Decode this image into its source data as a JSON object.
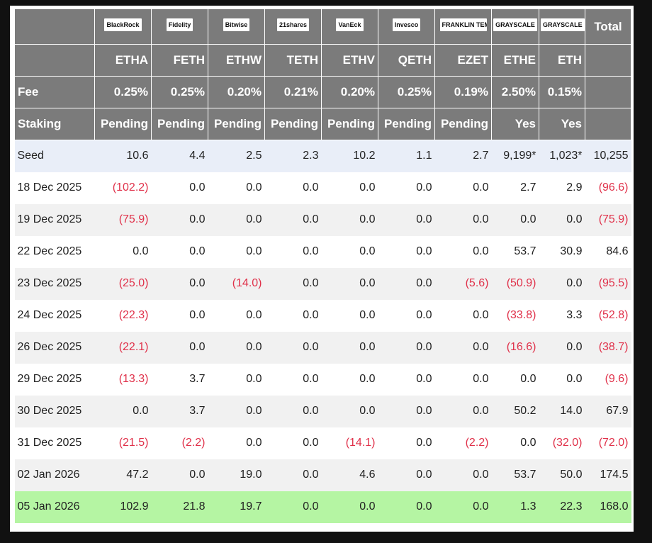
{
  "header": {
    "logos": [
      "BlackRock",
      "Fidelity",
      "Bitwise",
      "21shares",
      "VanEck",
      "Invesco",
      "FRANKLIN TEMPLETON",
      "GRAYSCALE",
      "GRAYSCALE"
    ],
    "total": "Total",
    "tickers": [
      "ETHA",
      "FETH",
      "ETHW",
      "TETH",
      "ETHV",
      "QETH",
      "EZET",
      "ETHE",
      "ETH"
    ]
  },
  "fee": {
    "label": "Fee",
    "values": [
      "0.25%",
      "0.25%",
      "0.20%",
      "0.21%",
      "0.20%",
      "0.25%",
      "0.19%",
      "2.50%",
      "0.15%"
    ]
  },
  "staking": {
    "label": "Staking",
    "values": [
      "Pending",
      "Pending",
      "Pending",
      "Pending",
      "Pending",
      "Pending",
      "Pending",
      "Yes",
      "Yes"
    ]
  },
  "rows": [
    {
      "label": "Seed",
      "cells": [
        "10.6",
        "4.4",
        "2.5",
        "2.3",
        "10.2",
        "1.1",
        "2.7",
        "9,199*",
        "1,023*",
        "10,255"
      ]
    },
    {
      "label": "18 Dec 2025",
      "cells": [
        "(102.2)",
        "0.0",
        "0.0",
        "0.0",
        "0.0",
        "0.0",
        "0.0",
        "2.7",
        "2.9",
        "(96.6)"
      ]
    },
    {
      "label": "19 Dec 2025",
      "cells": [
        "(75.9)",
        "0.0",
        "0.0",
        "0.0",
        "0.0",
        "0.0",
        "0.0",
        "0.0",
        "0.0",
        "(75.9)"
      ]
    },
    {
      "label": "22 Dec 2025",
      "cells": [
        "0.0",
        "0.0",
        "0.0",
        "0.0",
        "0.0",
        "0.0",
        "0.0",
        "53.7",
        "30.9",
        "84.6"
      ]
    },
    {
      "label": "23 Dec 2025",
      "cells": [
        "(25.0)",
        "0.0",
        "(14.0)",
        "0.0",
        "0.0",
        "0.0",
        "(5.6)",
        "(50.9)",
        "0.0",
        "(95.5)"
      ]
    },
    {
      "label": "24 Dec 2025",
      "cells": [
        "(22.3)",
        "0.0",
        "0.0",
        "0.0",
        "0.0",
        "0.0",
        "0.0",
        "(33.8)",
        "3.3",
        "(52.8)"
      ]
    },
    {
      "label": "26 Dec 2025",
      "cells": [
        "(22.1)",
        "0.0",
        "0.0",
        "0.0",
        "0.0",
        "0.0",
        "0.0",
        "(16.6)",
        "0.0",
        "(38.7)"
      ]
    },
    {
      "label": "29 Dec 2025",
      "cells": [
        "(13.3)",
        "3.7",
        "0.0",
        "0.0",
        "0.0",
        "0.0",
        "0.0",
        "0.0",
        "0.0",
        "(9.6)"
      ]
    },
    {
      "label": "30 Dec 2025",
      "cells": [
        "0.0",
        "3.7",
        "0.0",
        "0.0",
        "0.0",
        "0.0",
        "0.0",
        "50.2",
        "14.0",
        "67.9"
      ]
    },
    {
      "label": "31 Dec 2025",
      "cells": [
        "(21.5)",
        "(2.2)",
        "0.0",
        "0.0",
        "(14.1)",
        "0.0",
        "(2.2)",
        "0.0",
        "(32.0)",
        "(72.0)"
      ]
    },
    {
      "label": "02 Jan 2026",
      "cells": [
        "47.2",
        "0.0",
        "19.0",
        "0.0",
        "4.6",
        "0.0",
        "0.0",
        "53.7",
        "50.0",
        "174.5"
      ]
    },
    {
      "label": "05 Jan 2026",
      "cells": [
        "102.9",
        "21.8",
        "19.7",
        "0.0",
        "0.0",
        "0.0",
        "0.0",
        "1.3",
        "22.3",
        "168.0"
      ]
    }
  ]
}
